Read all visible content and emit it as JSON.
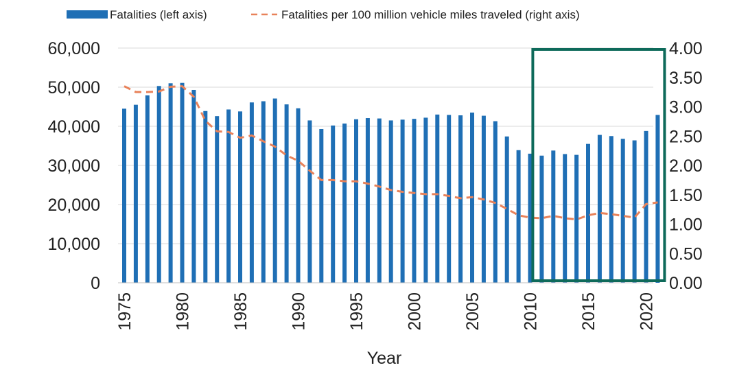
{
  "chart_data": {
    "type": "bar",
    "title": "",
    "xlabel": "Year",
    "ylabel": "",
    "ylim": [
      0,
      60000
    ],
    "y2lim": [
      0,
      4
    ],
    "grid": true,
    "legend_position": "top",
    "x": [
      1975,
      1976,
      1977,
      1978,
      1979,
      1980,
      1981,
      1982,
      1983,
      1984,
      1985,
      1986,
      1987,
      1988,
      1989,
      1990,
      1991,
      1992,
      1993,
      1994,
      1995,
      1996,
      1997,
      1998,
      1999,
      2000,
      2001,
      2002,
      2003,
      2004,
      2005,
      2006,
      2007,
      2008,
      2009,
      2010,
      2011,
      2012,
      2013,
      2014,
      2015,
      2016,
      2017,
      2018,
      2019,
      2020,
      2021
    ],
    "x_tick_labels": [
      "1975",
      "1980",
      "1985",
      "1990",
      "1995",
      "2000",
      "2005",
      "2010",
      "2015",
      "2020"
    ],
    "y_tick_labels": [
      "0",
      "10,000",
      "20,000",
      "30,000",
      "40,000",
      "50,000",
      "60,000"
    ],
    "y2_tick_labels": [
      "0.00",
      "0.50",
      "1.00",
      "1.50",
      "2.00",
      "2.50",
      "3.00",
      "3.50",
      "4.00"
    ],
    "series": [
      {
        "name": "Fatalities (left axis)",
        "type": "bar",
        "axis": "left",
        "color": "#1f6fb5",
        "values": [
          44500,
          45500,
          47900,
          50300,
          51000,
          51100,
          49300,
          43900,
          42600,
          44300,
          43800,
          46100,
          46400,
          47100,
          45600,
          44600,
          41500,
          39300,
          40200,
          40700,
          41800,
          42100,
          42000,
          41500,
          41700,
          41900,
          42200,
          43000,
          42900,
          42800,
          43500,
          42700,
          41300,
          37400,
          33900,
          33000,
          32500,
          33800,
          32900,
          32700,
          35500,
          37800,
          37500,
          36800,
          36400,
          38800,
          42900
        ]
      },
      {
        "name": "Fatalities per 100 million vehicle miles traveled (right axis)",
        "type": "line",
        "axis": "right",
        "style": "dashed",
        "color": "#e8825a",
        "values": [
          3.35,
          3.25,
          3.25,
          3.26,
          3.34,
          3.35,
          3.17,
          2.76,
          2.58,
          2.57,
          2.47,
          2.51,
          2.41,
          2.32,
          2.17,
          2.08,
          1.91,
          1.75,
          1.75,
          1.73,
          1.73,
          1.69,
          1.64,
          1.58,
          1.55,
          1.53,
          1.51,
          1.51,
          1.48,
          1.44,
          1.46,
          1.42,
          1.36,
          1.26,
          1.15,
          1.11,
          1.1,
          1.14,
          1.1,
          1.08,
          1.15,
          1.19,
          1.17,
          1.14,
          1.11,
          1.34,
          1.37
        ]
      }
    ],
    "annotation": {
      "type": "highlight-box",
      "from_year": 2011,
      "to_year": 2021,
      "color": "#0e6a5a"
    }
  },
  "colors": {
    "bar": "#1f6fb5",
    "line": "#e8825a",
    "highlight": "#0e6a5a",
    "grid": "#d9d9d9",
    "text": "#222222"
  }
}
